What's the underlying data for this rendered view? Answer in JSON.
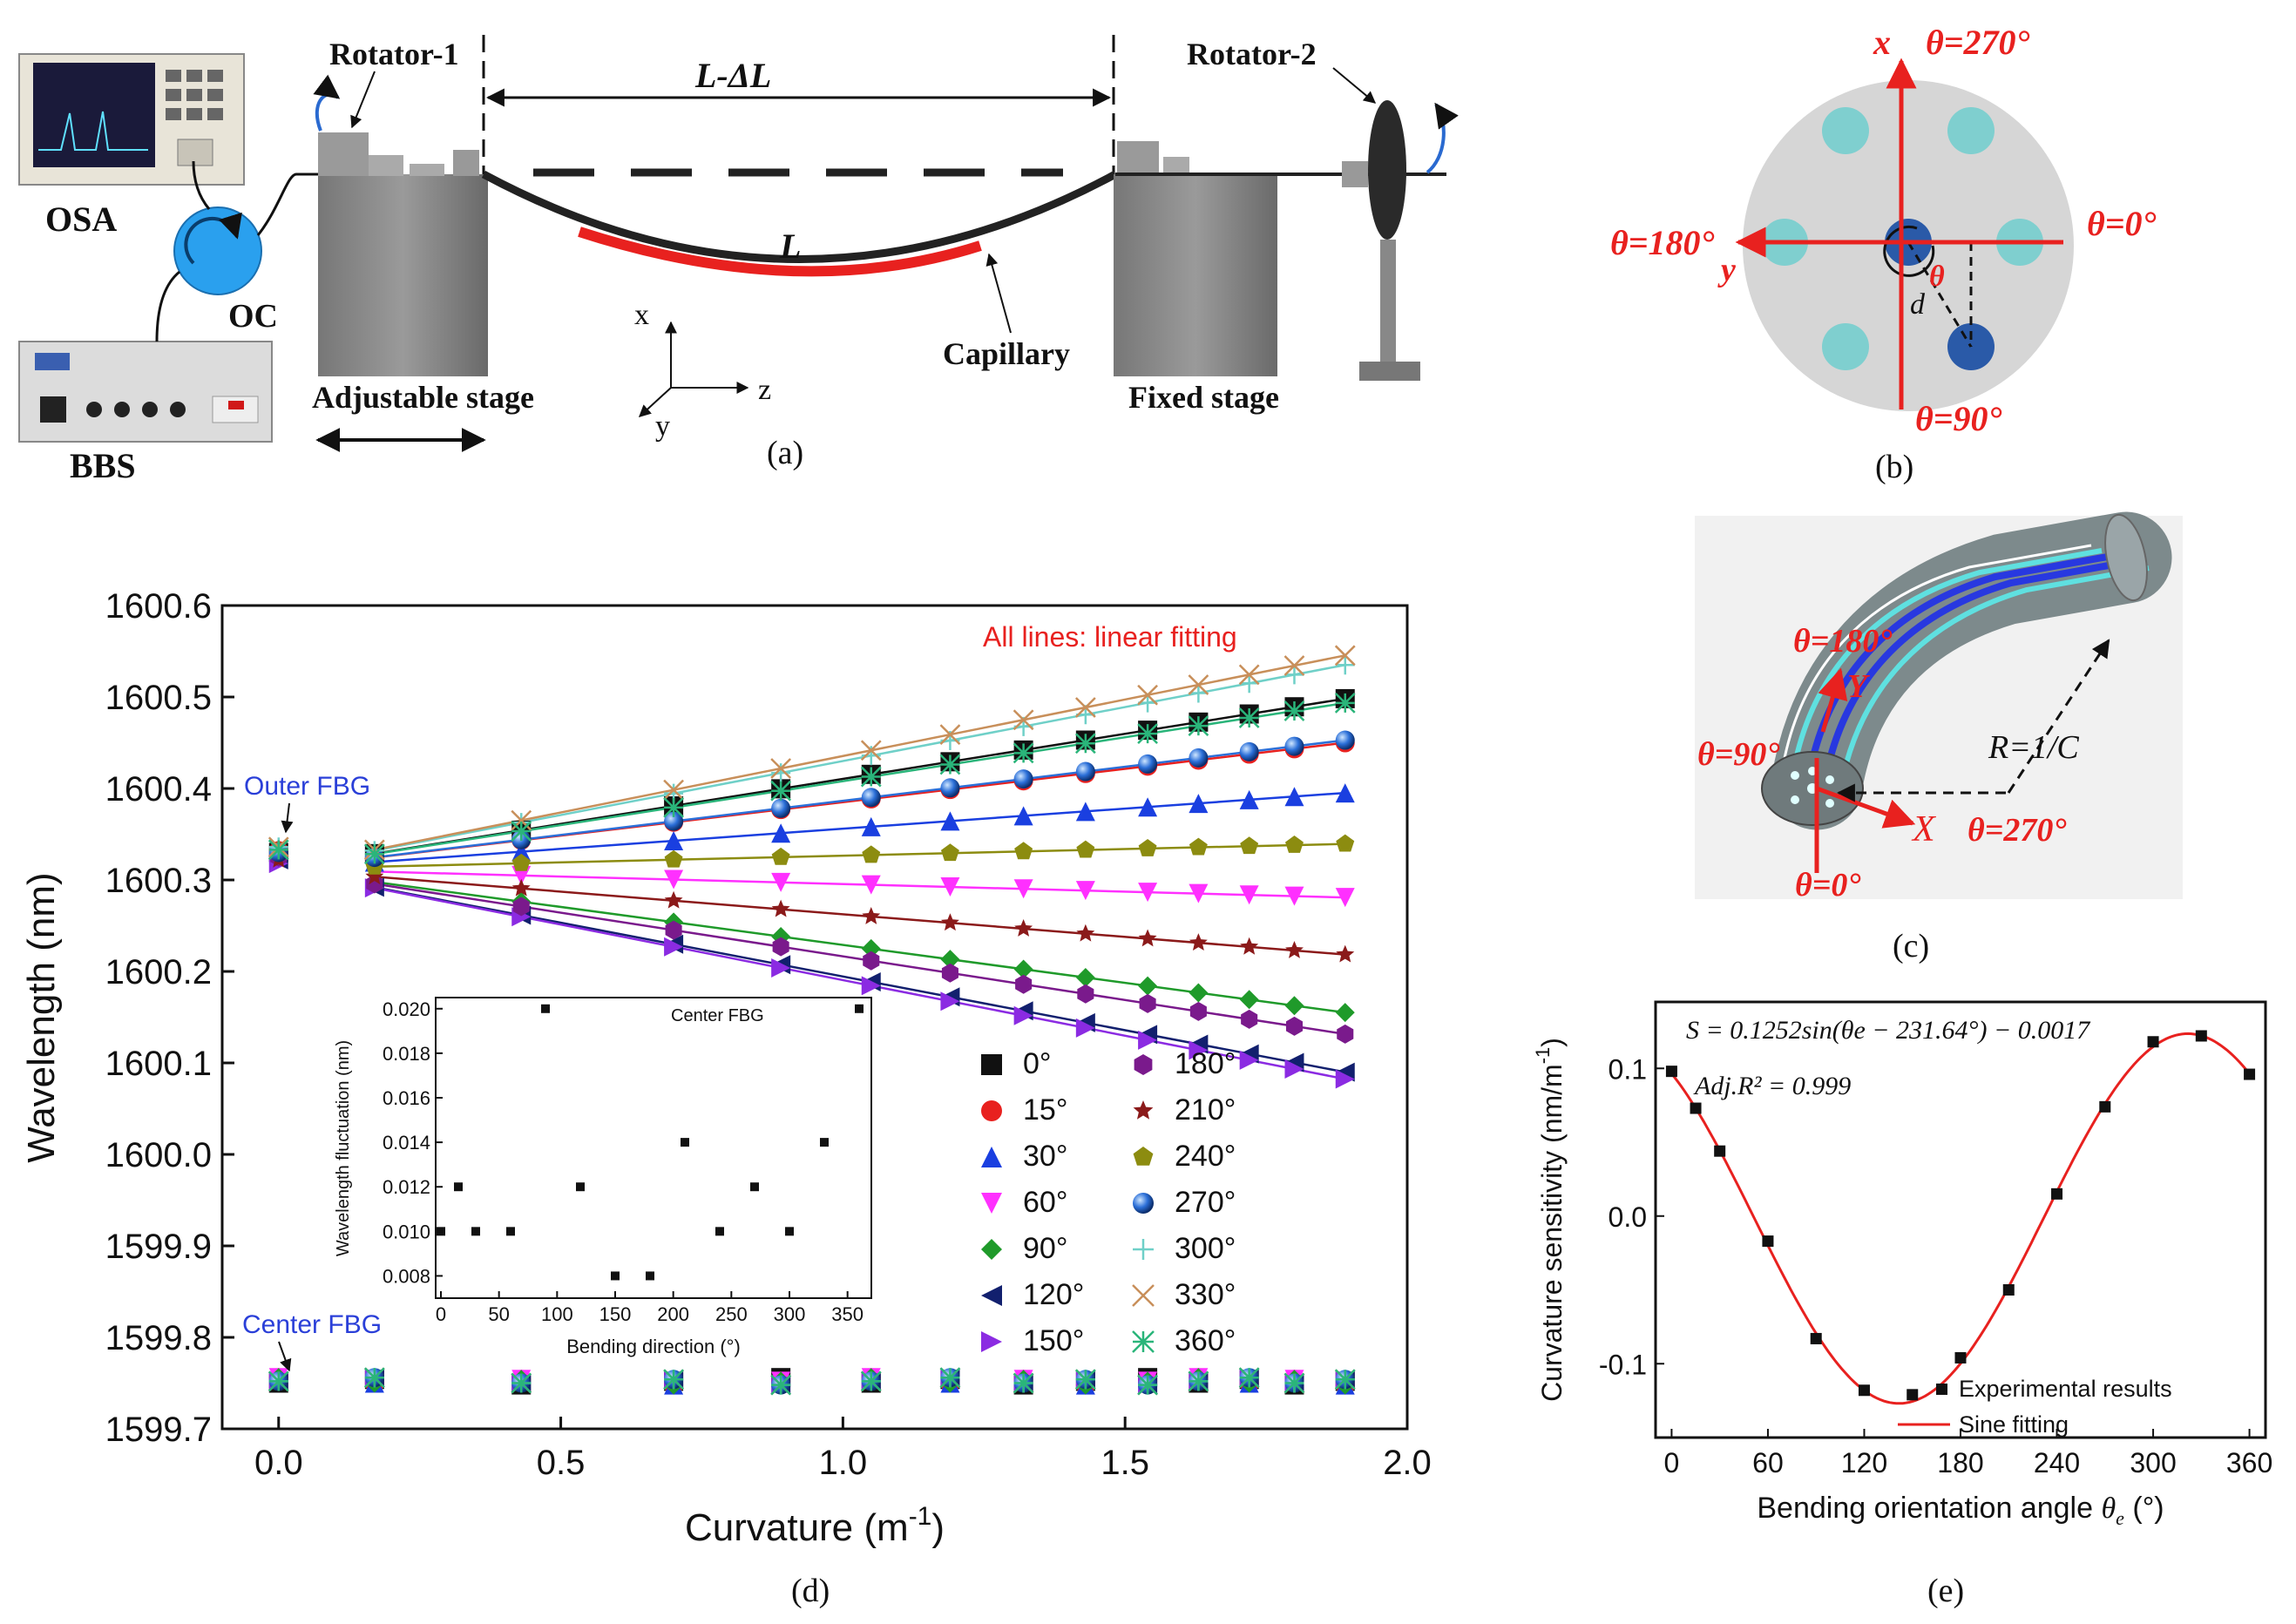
{
  "panel_a": {
    "caption": "(a)",
    "osa": "OSA",
    "oc": "OC",
    "bbs": "BBS",
    "rotator1": "Rotator-1",
    "rotator2": "Rotator-2",
    "span_label": "L-ΔL",
    "fiber_label": "L",
    "capillary": "Capillary",
    "adjustable_stage": "Adjustable stage",
    "fixed_stage": "Fixed stage",
    "axis_x": "x",
    "axis_y": "y",
    "axis_z": "z"
  },
  "panel_b": {
    "caption": "(b)",
    "axis_x": "x",
    "axis_y": "y",
    "theta_270": "θ=270°",
    "theta_0": "θ=0°",
    "theta_180": "θ=180°",
    "theta_90": "θ=90°",
    "theta": "θ",
    "d": "d"
  },
  "panel_c": {
    "caption": "(c)",
    "theta_180": "θ=180°",
    "theta_90": "θ=90°",
    "theta_270": "θ=270°",
    "theta_0": "θ=0°",
    "radius": "R=1/C",
    "axis_x": "X",
    "axis_y": "Y"
  },
  "panel_d": {
    "caption": "(d)",
    "annotation": "All lines: linear fitting",
    "outer_label": "Outer FBG",
    "center_label": "Center FBG",
    "inset_title": "Center FBG",
    "inset_xlabel": "Bending direction (°)",
    "inset_ylabel": "Wavelength fluctuation (nm)"
  },
  "panel_e": {
    "caption": "(e)",
    "equation": "S = 0.1252sin(θe − 231.64°) − 0.0017",
    "r2": "Adj.R² = 0.999",
    "legend_points": "Experimental results",
    "legend_line": "Sine fitting"
  },
  "chart_data": [
    {
      "id": "d",
      "type": "scatter",
      "title": "",
      "xlabel": "Curvature (m⁻¹)",
      "ylabel": "Wavelength (nm)",
      "xlim": [
        -0.1,
        2.0
      ],
      "ylim": [
        1599.7,
        1600.6
      ],
      "xticks": [
        "0.0",
        "0.5",
        "1.0",
        "1.5",
        "2.0"
      ],
      "yticks": [
        "1599.7",
        "1599.8",
        "1599.9",
        "1600.0",
        "1600.1",
        "1600.2",
        "1600.3",
        "1600.4",
        "1600.5",
        "1600.6"
      ],
      "x": [
        0,
        0.17,
        0.43,
        0.7,
        0.89,
        1.05,
        1.19,
        1.32,
        1.43,
        1.54,
        1.63,
        1.72,
        1.8,
        1.89
      ],
      "fit_start": 0.17,
      "center_y": 1599.752,
      "series": [
        {
          "name": "0°",
          "marker": "square",
          "color": "#111111",
          "outer0": 1600.33,
          "y0": 1600.312,
          "slope": 0.0985
        },
        {
          "name": "15°",
          "marker": "circle",
          "color": "#e8211f",
          "outer0": 1600.332,
          "y0": 1600.312,
          "slope": 0.073
        },
        {
          "name": "30°",
          "marker": "tri-up",
          "color": "#1a3fe0",
          "outer0": 1600.328,
          "y0": 1600.312,
          "slope": 0.044
        },
        {
          "name": "60°",
          "marker": "tri-down",
          "color": "#ff30ff",
          "outer0": 1600.325,
          "y0": 1600.312,
          "slope": -0.0165
        },
        {
          "name": "90°",
          "marker": "diamond",
          "color": "#1f9a2a",
          "outer0": 1600.33,
          "y0": 1600.312,
          "slope": -0.083
        },
        {
          "name": "120°",
          "marker": "tri-left",
          "color": "#12206e",
          "outer0": 1600.322,
          "y0": 1600.312,
          "slope": -0.1175
        },
        {
          "name": "150°",
          "marker": "tri-right",
          "color": "#8b2be2",
          "outer0": 1600.318,
          "y0": 1600.312,
          "slope": -0.1215
        },
        {
          "name": "180°",
          "marker": "hexagon",
          "color": "#7a1a8c",
          "outer0": 1600.325,
          "y0": 1600.312,
          "slope": -0.0955
        },
        {
          "name": "210°",
          "marker": "star",
          "color": "#8b1a1a",
          "outer0": 1600.322,
          "y0": 1600.312,
          "slope": -0.0495
        },
        {
          "name": "240°",
          "marker": "pentagon",
          "color": "#8c8c10",
          "outer0": 1600.332,
          "y0": 1600.312,
          "slope": 0.0145
        },
        {
          "name": "270°",
          "marker": "ball",
          "color": "#2b6fd8",
          "outer0": 1600.33,
          "y0": 1600.312,
          "slope": 0.0745
        },
        {
          "name": "300°",
          "marker": "plus",
          "color": "#6fd0c8",
          "outer0": 1600.336,
          "y0": 1600.312,
          "slope": 0.118
        },
        {
          "name": "330°",
          "marker": "x",
          "color": "#c88f5a",
          "outer0": 1600.336,
          "y0": 1600.312,
          "slope": 0.1235
        },
        {
          "name": "360°",
          "marker": "asterisk",
          "color": "#2ab57a",
          "outer0": 1600.333,
          "y0": 1600.312,
          "slope": 0.096
        }
      ]
    },
    {
      "id": "d-inset",
      "type": "scatter",
      "title": "Center FBG",
      "xlabel": "Bending direction (°)",
      "ylabel": "Wavelength fluctuation (nm)",
      "xlim": [
        0,
        360
      ],
      "ylim": [
        0.007,
        0.0205
      ],
      "xticks": [
        "0",
        "50",
        "100",
        "150",
        "200",
        "250",
        "300",
        "350"
      ],
      "yticks": [
        "0.008",
        "0.010",
        "0.012",
        "0.014",
        "0.016",
        "0.018",
        "0.020"
      ],
      "x": [
        0,
        15,
        30,
        60,
        90,
        120,
        150,
        180,
        210,
        240,
        270,
        300,
        330,
        360
      ],
      "y": [
        0.01,
        0.012,
        0.01,
        0.01,
        0.02,
        0.012,
        0.008,
        0.008,
        0.014,
        0.01,
        0.012,
        0.01,
        0.014,
        0.02
      ]
    },
    {
      "id": "e",
      "type": "scatter",
      "title": "",
      "xlabel": "Bending orientation angle θe (°)",
      "ylabel": "Curvature sensitivity (nm/m⁻¹)",
      "xlim": [
        -10,
        370
      ],
      "ylim": [
        -0.15,
        0.145
      ],
      "xticks": [
        "0",
        "60",
        "120",
        "180",
        "240",
        "300",
        "360"
      ],
      "yticks": [
        "-0.1",
        "0.0",
        "0.1"
      ],
      "x": [
        0,
        15,
        30,
        60,
        90,
        120,
        150,
        180,
        210,
        240,
        270,
        300,
        330,
        360
      ],
      "y": [
        0.098,
        0.073,
        0.044,
        -0.017,
        -0.083,
        -0.118,
        -0.121,
        -0.096,
        -0.05,
        0.015,
        0.074,
        0.118,
        0.122,
        0.096
      ],
      "fit": {
        "amplitude": 0.1252,
        "phase_deg": 231.64,
        "offset": -0.0017
      }
    }
  ]
}
